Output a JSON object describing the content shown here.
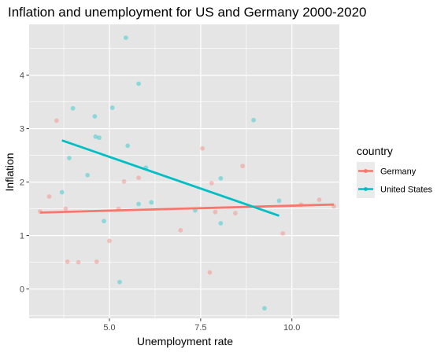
{
  "chart_data": {
    "type": "scatter",
    "title": "Inflation and unemployment for US and Germany 2000-2020",
    "xlabel": "Unemployment rate",
    "ylabel": "Inflation",
    "xlim": [
      2.8,
      11.3
    ],
    "ylim": [
      -0.55,
      4.95
    ],
    "x_ticks": [
      5.0,
      7.5,
      10.0
    ],
    "x_tick_labels": [
      "5.0",
      "7.5",
      "10.0"
    ],
    "y_ticks": [
      0,
      1,
      2,
      3,
      4
    ],
    "y_tick_labels": [
      "0",
      "1",
      "2",
      "3",
      "4"
    ],
    "x_minor_ticks": [
      3.75,
      6.25,
      8.75
    ],
    "y_minor_ticks": [
      -0.5,
      0.5,
      1.5,
      2.5,
      3.5,
      4.5
    ],
    "grid": true,
    "panel_background": "#e5e5e5",
    "grid_color": "#ffffff",
    "legend": {
      "title": "country",
      "position": "right",
      "entries": [
        "Germany",
        "United States"
      ]
    },
    "series": [
      {
        "name": "Germany",
        "color": "#f8766d",
        "points": [
          {
            "x": 3.1,
            "y": 1.45
          },
          {
            "x": 3.35,
            "y": 1.73
          },
          {
            "x": 3.55,
            "y": 3.15
          },
          {
            "x": 3.8,
            "y": 1.5
          },
          {
            "x": 3.85,
            "y": 0.51
          },
          {
            "x": 4.15,
            "y": 0.5
          },
          {
            "x": 4.65,
            "y": 0.51
          },
          {
            "x": 5.0,
            "y": 0.9
          },
          {
            "x": 5.25,
            "y": 1.5
          },
          {
            "x": 5.4,
            "y": 2.01
          },
          {
            "x": 5.8,
            "y": 2.08
          },
          {
            "x": 6.95,
            "y": 1.1
          },
          {
            "x": 7.55,
            "y": 2.63
          },
          {
            "x": 7.75,
            "y": 0.31
          },
          {
            "x": 7.8,
            "y": 1.98
          },
          {
            "x": 7.9,
            "y": 1.44
          },
          {
            "x": 8.45,
            "y": 1.42
          },
          {
            "x": 8.65,
            "y": 2.3
          },
          {
            "x": 9.75,
            "y": 1.04
          },
          {
            "x": 10.25,
            "y": 1.58
          },
          {
            "x": 10.75,
            "y": 1.67
          },
          {
            "x": 11.15,
            "y": 1.55
          }
        ],
        "trend": {
          "x": [
            3.1,
            11.15
          ],
          "y": [
            1.43,
            1.58
          ]
        }
      },
      {
        "name": "United States",
        "color": "#00bfc4",
        "points": [
          {
            "x": 3.7,
            "y": 1.81
          },
          {
            "x": 3.9,
            "y": 2.45
          },
          {
            "x": 4.0,
            "y": 3.38
          },
          {
            "x": 4.4,
            "y": 2.13
          },
          {
            "x": 4.6,
            "y": 3.23
          },
          {
            "x": 4.62,
            "y": 2.85
          },
          {
            "x": 4.72,
            "y": 2.83
          },
          {
            "x": 4.85,
            "y": 1.27
          },
          {
            "x": 5.08,
            "y": 3.39
          },
          {
            "x": 5.28,
            "y": 0.13
          },
          {
            "x": 5.45,
            "y": 4.7
          },
          {
            "x": 5.5,
            "y": 2.68
          },
          {
            "x": 5.8,
            "y": 1.59
          },
          {
            "x": 5.8,
            "y": 3.84
          },
          {
            "x": 6.0,
            "y": 2.27
          },
          {
            "x": 6.15,
            "y": 1.62
          },
          {
            "x": 7.35,
            "y": 1.47
          },
          {
            "x": 8.05,
            "y": 2.07
          },
          {
            "x": 8.05,
            "y": 1.23
          },
          {
            "x": 8.95,
            "y": 3.16
          },
          {
            "x": 9.25,
            "y": -0.36
          },
          {
            "x": 9.65,
            "y": 1.65
          }
        ],
        "trend": {
          "x": [
            3.7,
            9.65
          ],
          "y": [
            2.78,
            1.37
          ]
        }
      }
    ]
  }
}
